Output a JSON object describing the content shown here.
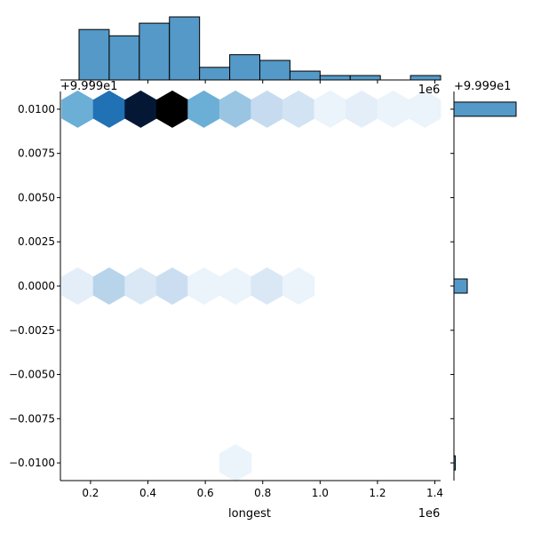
{
  "chart_data": {
    "type": "hexbin",
    "kind": "joint-plot",
    "xlabel": "longest",
    "ylabel": "",
    "x_offset_label": "1e6",
    "y_offset_label": "+9.999e1",
    "right_offset_label": "+9.999e1",
    "x_top_offset_label": "1e6",
    "xlim": [
      0.095,
      1.42
    ],
    "ylim": [
      -0.011,
      0.011
    ],
    "x_ticks": [
      0.2,
      0.4,
      0.6,
      0.8,
      1.0,
      1.2,
      1.4
    ],
    "x_tick_labels": [
      "0.2",
      "0.4",
      "0.6",
      "0.8",
      "1.0",
      "1.2",
      "1.4"
    ],
    "y_ticks": [
      0.01,
      0.0075,
      0.005,
      0.0025,
      0.0,
      -0.0025,
      -0.005,
      -0.0075,
      -0.01
    ],
    "y_tick_labels": [
      "0.0100",
      "0.0075",
      "0.0050",
      "0.0025",
      "0.0000",
      "−0.0025",
      "−0.0050",
      "−0.0075",
      "−0.0100"
    ],
    "hexbins": [
      {
        "x": 0.155,
        "y": 0.01,
        "count": 4
      },
      {
        "x": 0.265,
        "y": 0.01,
        "count": 6
      },
      {
        "x": 0.375,
        "y": 0.01,
        "count": 9
      },
      {
        "x": 0.485,
        "y": 0.01,
        "count": 10
      },
      {
        "x": 0.595,
        "y": 0.01,
        "count": 4
      },
      {
        "x": 0.705,
        "y": 0.01,
        "count": 3
      },
      {
        "x": 0.815,
        "y": 0.01,
        "count": 2
      },
      {
        "x": 0.925,
        "y": 0.01,
        "count": 1.5
      },
      {
        "x": 1.035,
        "y": 0.01,
        "count": 0.5
      },
      {
        "x": 1.145,
        "y": 0.01,
        "count": 0.8
      },
      {
        "x": 1.255,
        "y": 0.01,
        "count": 0.5
      },
      {
        "x": 1.365,
        "y": 0.01,
        "count": 0.5
      },
      {
        "x": 0.155,
        "y": 0.0,
        "count": 0.8
      },
      {
        "x": 0.265,
        "y": 0.0,
        "count": 2.3
      },
      {
        "x": 0.375,
        "y": 0.0,
        "count": 1.2
      },
      {
        "x": 0.485,
        "y": 0.0,
        "count": 1.8
      },
      {
        "x": 0.595,
        "y": 0.0,
        "count": 0.5
      },
      {
        "x": 0.705,
        "y": 0.0,
        "count": 0.5
      },
      {
        "x": 0.815,
        "y": 0.0,
        "count": 1.2
      },
      {
        "x": 0.925,
        "y": 0.0,
        "count": 0.5
      },
      {
        "x": 0.705,
        "y": -0.01,
        "count": 0.5
      }
    ],
    "max_count": 10,
    "colormap": [
      "#f7fbff",
      "#c6dbef",
      "#6baed6",
      "#2171b5",
      "#08306b",
      "#000000"
    ],
    "x_marginal": {
      "type": "histogram",
      "bin_edges": [
        0.16,
        0.265,
        0.37,
        0.475,
        0.58,
        0.685,
        0.79,
        0.895,
        1.0,
        1.105,
        1.21,
        1.315,
        1.42
      ],
      "counts": [
        8,
        7,
        9,
        10,
        2,
        4,
        3.1,
        1.4,
        0.7,
        0.7,
        0,
        0.7
      ]
    },
    "y_marginal": {
      "type": "histogram",
      "bins": [
        {
          "y": 0.01,
          "count": 70
        },
        {
          "y": 0.0,
          "count": 15
        },
        {
          "y": -0.01,
          "count": 1.5
        }
      ],
      "max_count": 70
    },
    "colors": {
      "hist_fill": "#5499c7",
      "hist_edge": "#000000",
      "axis": "#000000"
    }
  }
}
